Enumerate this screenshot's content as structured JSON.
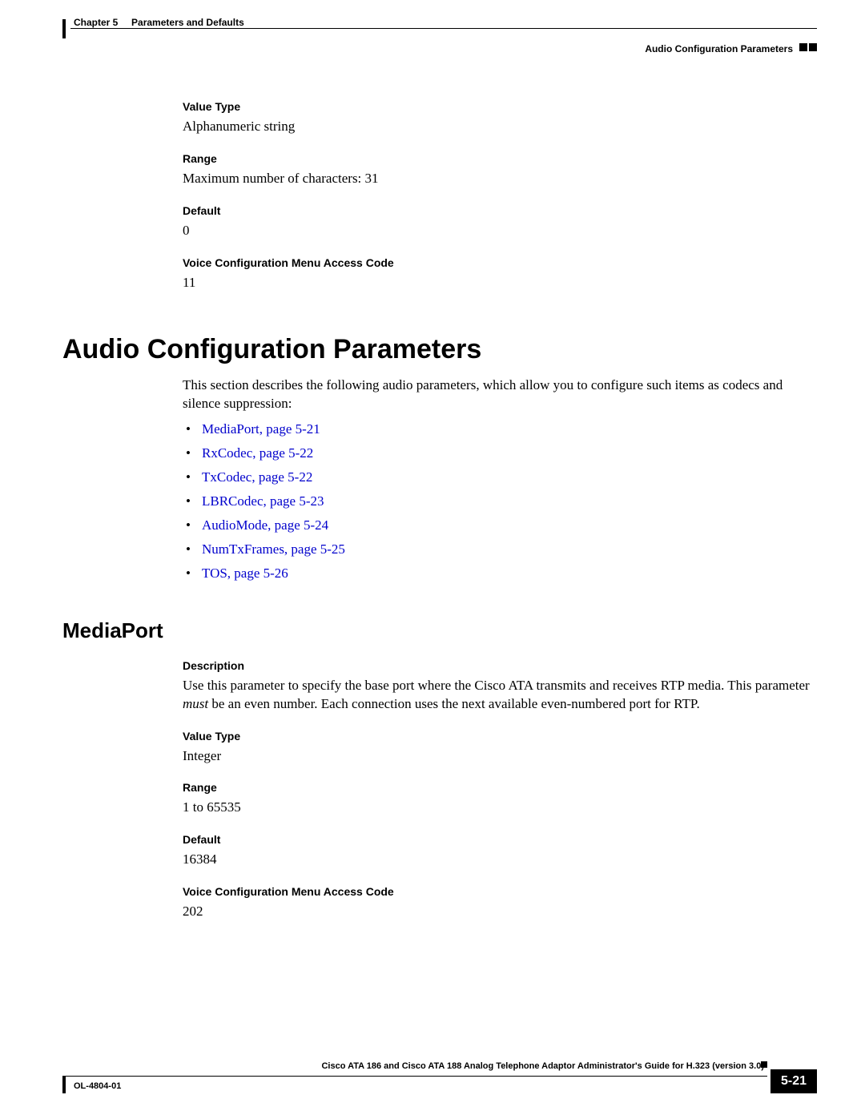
{
  "header": {
    "chapter_label": "Chapter 5",
    "chapter_title": "Parameters and Defaults",
    "section_title": "Audio Configuration Parameters"
  },
  "top_param": {
    "value_type_label": "Value Type",
    "value_type": "Alphanumeric string",
    "range_label": "Range",
    "range": "Maximum number of characters: 31",
    "default_label": "Default",
    "default": "0",
    "vcmac_label": "Voice Configuration Menu Access Code",
    "vcmac": "11"
  },
  "section": {
    "title": "Audio Configuration Parameters",
    "intro": "This section describes the following audio parameters, which allow you to configure such items as codecs and silence suppression:",
    "links": [
      "MediaPort, page 5-21",
      "RxCodec, page 5-22",
      "TxCodec, page 5-22",
      "LBRCodec, page 5-23",
      "AudioMode, page 5-24",
      "NumTxFrames, page 5-25",
      "TOS, page 5-26"
    ]
  },
  "mediaport": {
    "title": "MediaPort",
    "description_label": "Description",
    "description_pre": "Use this parameter to specify the base port where the Cisco ATA transmits and receives RTP media. This parameter ",
    "description_em": "must",
    "description_post": " be an even number. Each connection uses the next available even-numbered port for RTP.",
    "value_type_label": "Value Type",
    "value_type": "Integer",
    "range_label": "Range",
    "range": "1 to 65535",
    "default_label": "Default",
    "default": "16384",
    "vcmac_label": "Voice Configuration Menu Access Code",
    "vcmac": "202"
  },
  "footer": {
    "guide_title": "Cisco ATA 186 and Cisco ATA 188 Analog Telephone Adaptor Administrator's Guide for H.323 (version 3.0)",
    "doc_number": "OL-4804-01",
    "page_number": "5-21"
  },
  "style": {
    "link_color": "#0000cc",
    "text_color": "#000000",
    "background_color": "#ffffff",
    "body_font": "Times New Roman",
    "heading_font": "Arial",
    "h1_fontsize_pt": 26,
    "h2_fontsize_pt": 20,
    "label_fontsize_pt": 10,
    "body_fontsize_pt": 13
  }
}
